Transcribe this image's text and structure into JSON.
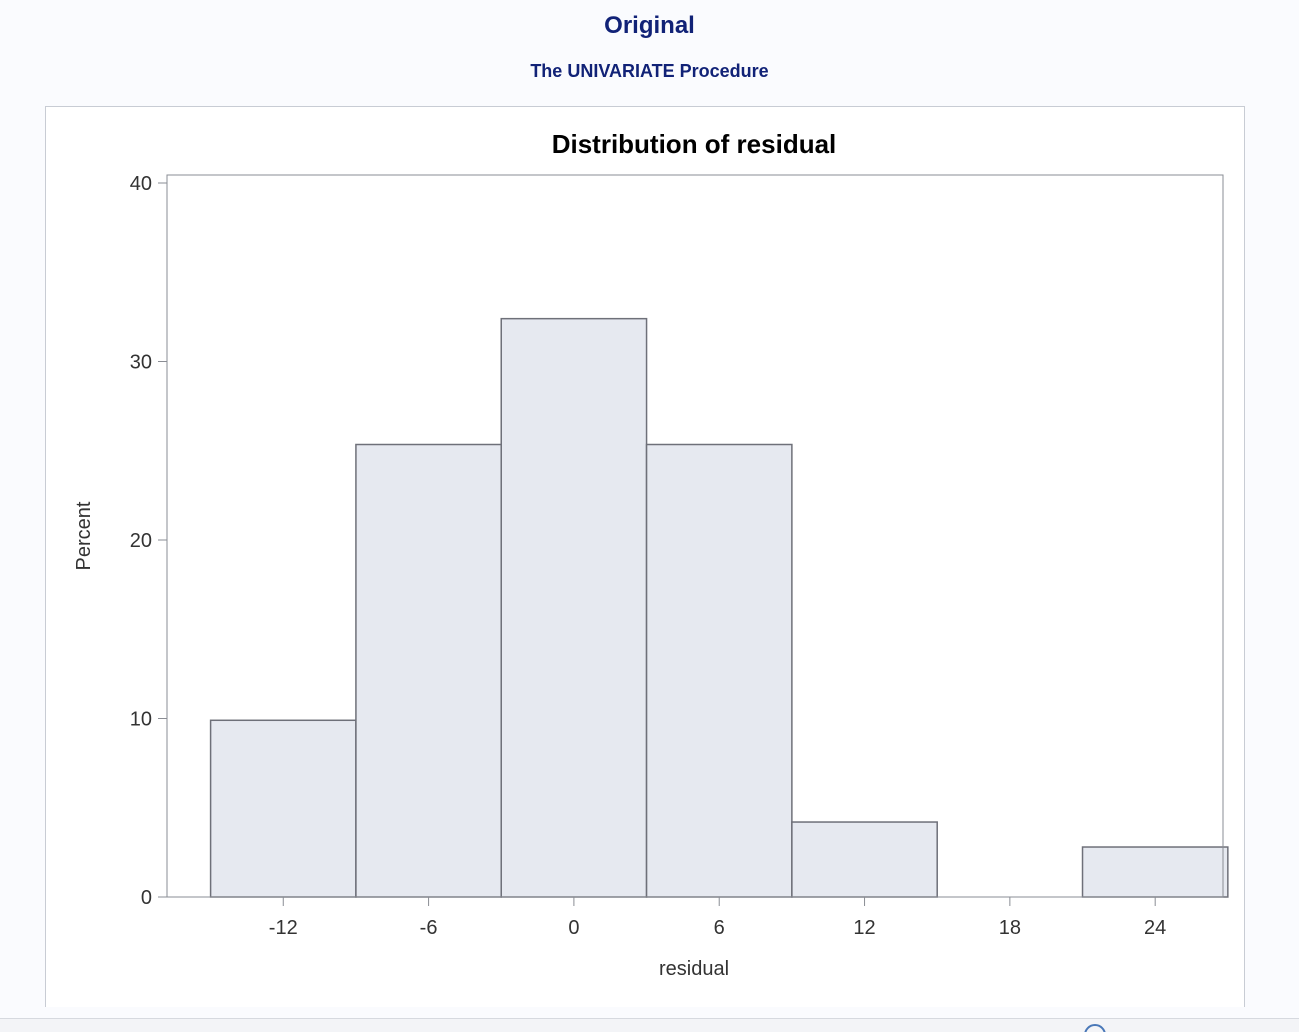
{
  "header": {
    "title": "Original",
    "subtitle": "The UNIVARIATE Procedure"
  },
  "chart_data": {
    "type": "bar",
    "title": "Distribution of residual",
    "xlabel": "residual",
    "ylabel": "Percent",
    "bin_width": 6,
    "bins": [
      {
        "midpoint": -12,
        "value": 9.9
      },
      {
        "midpoint": -6,
        "value": 25.35
      },
      {
        "midpoint": 0,
        "value": 32.4
      },
      {
        "midpoint": 6,
        "value": 25.35
      },
      {
        "midpoint": 12,
        "value": 4.2
      },
      {
        "midpoint": 18,
        "value": 0
      },
      {
        "midpoint": 24,
        "value": 2.8
      }
    ],
    "x_ticks": [
      "-12",
      "-6",
      "0",
      "6",
      "12",
      "18",
      "24"
    ],
    "y_ticks": [
      "0",
      "10",
      "20",
      "30",
      "40"
    ],
    "ylim": [
      0,
      40
    ],
    "xlim": [
      -16.8,
      26.8
    ],
    "grid": false,
    "colors": {
      "bar_fill": "#e6e9f0",
      "bar_stroke": "#6e7079",
      "axis": "#8a8d94",
      "header_text": "#112277"
    }
  },
  "status": {
    "icon": "info-icon"
  }
}
